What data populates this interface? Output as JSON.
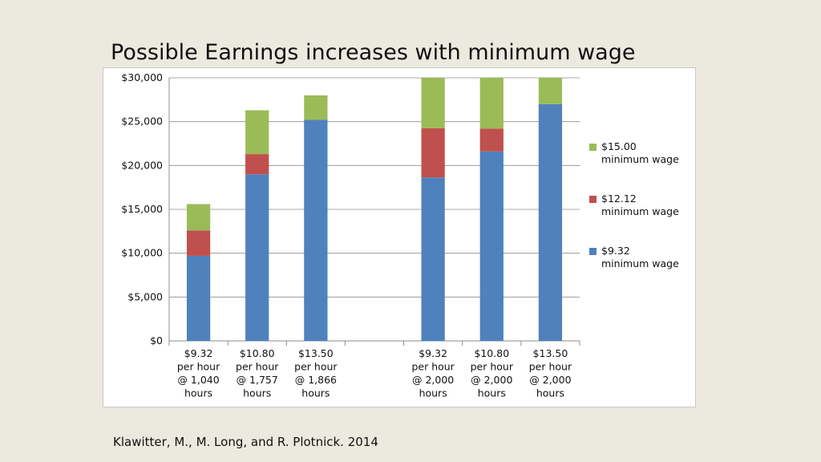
{
  "slide": {
    "title": "Possible Earnings increases with minimum wage",
    "citation": "Klawitter, M., M. Long, and R. Plotnick. 2014"
  },
  "chart_data": {
    "type": "bar",
    "stacked": true,
    "ylim": [
      0,
      30000
    ],
    "yticks": [
      0,
      5000,
      10000,
      15000,
      20000,
      25000,
      30000
    ],
    "ytick_labels": [
      "$0",
      "$5,000",
      "$10,000",
      "$15,000",
      "$20,000",
      "$25,000",
      "$30,000"
    ],
    "categories": [
      [
        "$9.32",
        "per hour",
        "@ 1,040",
        "hours"
      ],
      [
        "$10.80",
        "per hour",
        "@ 1,757",
        "hours"
      ],
      [
        "$13.50",
        "per hour",
        "@ 1,866",
        "hours"
      ],
      [
        "",
        "",
        "",
        ""
      ],
      [
        "$9.32",
        "per hour",
        "@ 2,000",
        "hours"
      ],
      [
        "$10.80",
        "per hour",
        "@ 2,000",
        "hours"
      ],
      [
        "$13.50",
        "per hour",
        "@ 2,000",
        "hours"
      ]
    ],
    "series": [
      {
        "name": "$9.32 minimum wage",
        "label_lines": [
          "$9.32",
          "minimum wage"
        ],
        "color": "#4f81bd",
        "values": [
          9700,
          19000,
          25200,
          null,
          18640,
          21600,
          27000
        ]
      },
      {
        "name": "$12.12 minimum wage",
        "label_lines": [
          "$12.12",
          "minimum wage"
        ],
        "color": "#c0504d",
        "values": [
          2900,
          2300,
          0,
          null,
          5600,
          2600,
          0
        ]
      },
      {
        "name": "$15.00 minimum wage",
        "label_lines": [
          "$15.00",
          "minimum wage"
        ],
        "color": "#9bbb59",
        "values": [
          3000,
          5000,
          2800,
          null,
          5800,
          5800,
          3000
        ]
      }
    ],
    "legend_position": "right",
    "grid": true
  }
}
